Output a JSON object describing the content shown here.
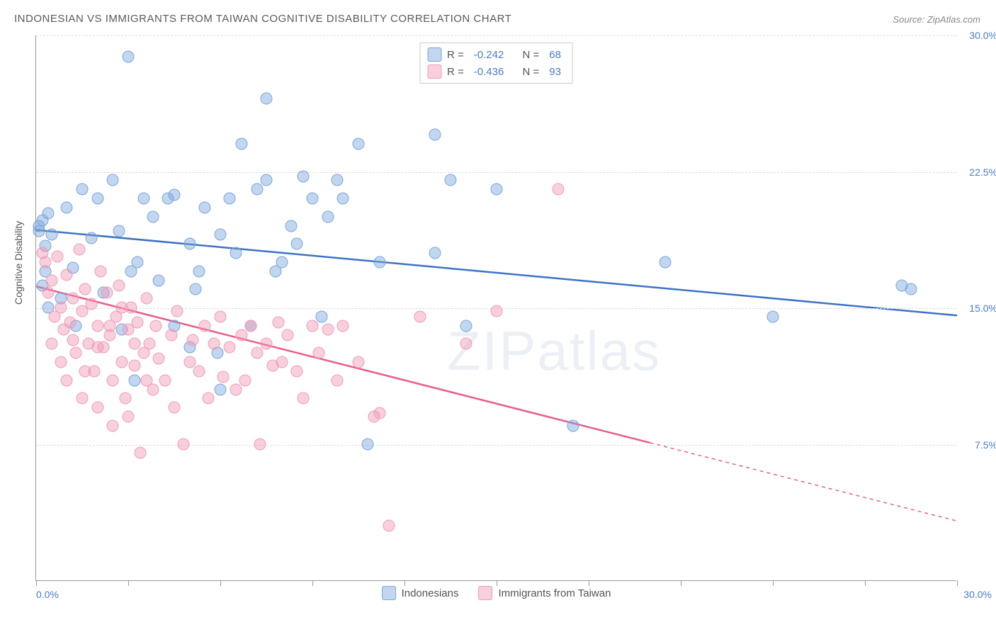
{
  "title": "INDONESIAN VS IMMIGRANTS FROM TAIWAN COGNITIVE DISABILITY CORRELATION CHART",
  "source_label": "Source:",
  "source_name": "ZipAtlas.com",
  "watermark": "ZIPatlas",
  "y_axis_title": "Cognitive Disability",
  "chart": {
    "type": "scatter",
    "xlim": [
      0,
      30
    ],
    "ylim": [
      0,
      30
    ],
    "x_ticks": [
      0,
      3,
      6,
      9,
      12,
      15,
      18,
      21,
      24,
      27,
      30
    ],
    "y_grid": [
      7.5,
      15.0,
      22.5,
      30.0
    ],
    "y_tick_labels": [
      "7.5%",
      "15.0%",
      "22.5%",
      "30.0%"
    ],
    "x_label_min": "0.0%",
    "x_label_max": "30.0%",
    "background_color": "#ffffff",
    "grid_color": "#dcdcdc",
    "axis_label_color": "#4a7bc8"
  },
  "series": [
    {
      "name": "Indonesians",
      "label": "Indonesians",
      "fill_color": "rgba(120,165,220,0.45)",
      "stroke_color": "#7aa6dd",
      "line_color": "#3d73c5",
      "marker_radius": 8.5,
      "R": "-0.242",
      "N": "68",
      "trend": {
        "x1": 0,
        "y1": 19.3,
        "x2": 30,
        "y2": 14.6,
        "solid_to_x": 30
      },
      "points": [
        [
          0.1,
          19.5
        ],
        [
          0.1,
          19.2
        ],
        [
          0.2,
          19.8
        ],
        [
          0.3,
          18.4
        ],
        [
          0.4,
          20.2
        ],
        [
          0.5,
          19.0
        ],
        [
          1.0,
          20.5
        ],
        [
          1.2,
          17.2
        ],
        [
          1.5,
          21.5
        ],
        [
          1.8,
          18.8
        ],
        [
          2.0,
          21.0
        ],
        [
          2.2,
          15.8
        ],
        [
          2.5,
          22.0
        ],
        [
          2.7,
          19.2
        ],
        [
          3.0,
          28.8
        ],
        [
          3.1,
          17.0
        ],
        [
          3.3,
          17.5
        ],
        [
          3.5,
          21.0
        ],
        [
          3.8,
          20.0
        ],
        [
          4.0,
          16.5
        ],
        [
          4.3,
          21.0
        ],
        [
          4.5,
          21.2
        ],
        [
          5.0,
          18.5
        ],
        [
          5.2,
          16.0
        ],
        [
          5.3,
          17.0
        ],
        [
          5.5,
          20.5
        ],
        [
          5.9,
          12.5
        ],
        [
          6.0,
          19.0
        ],
        [
          6.3,
          21.0
        ],
        [
          6.5,
          18.0
        ],
        [
          6.7,
          24.0
        ],
        [
          7.0,
          14.0
        ],
        [
          7.2,
          21.5
        ],
        [
          7.5,
          22.0
        ],
        [
          7.5,
          26.5
        ],
        [
          7.8,
          17.0
        ],
        [
          8.0,
          17.5
        ],
        [
          8.3,
          19.5
        ],
        [
          8.5,
          18.5
        ],
        [
          8.7,
          22.2
        ],
        [
          9.0,
          21.0
        ],
        [
          9.3,
          14.5
        ],
        [
          9.5,
          20.0
        ],
        [
          9.8,
          22.0
        ],
        [
          10.0,
          21.0
        ],
        [
          10.5,
          24.0
        ],
        [
          10.8,
          7.5
        ],
        [
          11.2,
          17.5
        ],
        [
          13.0,
          24.5
        ],
        [
          13.0,
          18.0
        ],
        [
          13.5,
          22.0
        ],
        [
          14.0,
          14.0
        ],
        [
          15.0,
          21.5
        ],
        [
          17.5,
          8.5
        ],
        [
          20.5,
          17.5
        ],
        [
          24.0,
          14.5
        ],
        [
          28.2,
          16.2
        ],
        [
          28.5,
          16.0
        ],
        [
          6.0,
          10.5
        ],
        [
          4.5,
          14.0
        ],
        [
          2.8,
          13.8
        ],
        [
          3.2,
          11.0
        ],
        [
          5.0,
          12.8
        ],
        [
          0.8,
          15.5
        ],
        [
          1.3,
          14.0
        ],
        [
          0.3,
          17.0
        ],
        [
          0.2,
          16.2
        ],
        [
          0.4,
          15.0
        ]
      ]
    },
    {
      "name": "Immigrants from Taiwan",
      "label": "Immigrants from Taiwan",
      "fill_color": "rgba(240,150,180,0.45)",
      "stroke_color": "#f19bb8",
      "line_color": "#e85d8a",
      "marker_radius": 8.5,
      "R": "-0.436",
      "N": "93",
      "trend": {
        "x1": 0,
        "y1": 16.2,
        "x2": 30,
        "y2": 3.3,
        "solid_to_x": 20
      },
      "points": [
        [
          0.2,
          18.0
        ],
        [
          0.3,
          17.5
        ],
        [
          0.4,
          15.8
        ],
        [
          0.5,
          16.5
        ],
        [
          0.6,
          14.5
        ],
        [
          0.7,
          17.8
        ],
        [
          0.8,
          15.0
        ],
        [
          0.9,
          13.8
        ],
        [
          1.0,
          16.8
        ],
        [
          1.1,
          14.2
        ],
        [
          1.2,
          15.5
        ],
        [
          1.3,
          12.5
        ],
        [
          1.4,
          18.2
        ],
        [
          1.5,
          14.8
        ],
        [
          1.6,
          16.0
        ],
        [
          1.7,
          13.0
        ],
        [
          1.8,
          15.2
        ],
        [
          1.9,
          11.5
        ],
        [
          2.0,
          14.0
        ],
        [
          2.1,
          17.0
        ],
        [
          2.2,
          12.8
        ],
        [
          2.3,
          15.8
        ],
        [
          2.4,
          13.5
        ],
        [
          2.5,
          11.0
        ],
        [
          2.6,
          14.5
        ],
        [
          2.7,
          16.2
        ],
        [
          2.8,
          12.0
        ],
        [
          2.9,
          10.0
        ],
        [
          3.0,
          13.8
        ],
        [
          3.1,
          15.0
        ],
        [
          3.2,
          11.8
        ],
        [
          3.3,
          14.2
        ],
        [
          3.4,
          7.0
        ],
        [
          3.5,
          12.5
        ],
        [
          3.6,
          15.5
        ],
        [
          3.7,
          13.0
        ],
        [
          3.8,
          10.5
        ],
        [
          3.9,
          14.0
        ],
        [
          4.0,
          12.2
        ],
        [
          4.2,
          11.0
        ],
        [
          4.4,
          13.5
        ],
        [
          4.5,
          9.5
        ],
        [
          4.6,
          14.8
        ],
        [
          4.8,
          7.5
        ],
        [
          5.0,
          12.0
        ],
        [
          5.1,
          13.2
        ],
        [
          5.3,
          11.5
        ],
        [
          5.5,
          14.0
        ],
        [
          5.6,
          10.0
        ],
        [
          5.8,
          13.0
        ],
        [
          6.0,
          14.5
        ],
        [
          6.1,
          11.2
        ],
        [
          6.3,
          12.8
        ],
        [
          6.5,
          10.5
        ],
        [
          6.7,
          13.5
        ],
        [
          6.8,
          11.0
        ],
        [
          7.0,
          14.0
        ],
        [
          7.2,
          12.5
        ],
        [
          7.3,
          7.5
        ],
        [
          7.5,
          13.0
        ],
        [
          7.7,
          11.8
        ],
        [
          7.9,
          14.2
        ],
        [
          8.0,
          12.0
        ],
        [
          8.2,
          13.5
        ],
        [
          8.5,
          11.5
        ],
        [
          8.7,
          10.0
        ],
        [
          9.0,
          14.0
        ],
        [
          9.2,
          12.5
        ],
        [
          9.5,
          13.8
        ],
        [
          9.8,
          11.0
        ],
        [
          10.0,
          14.0
        ],
        [
          10.5,
          12.0
        ],
        [
          11.0,
          9.0
        ],
        [
          11.2,
          9.2
        ],
        [
          11.5,
          3.0
        ],
        [
          12.5,
          14.5
        ],
        [
          14.0,
          13.0
        ],
        [
          15.0,
          14.8
        ],
        [
          17.0,
          21.5
        ],
        [
          1.0,
          11.0
        ],
        [
          1.5,
          10.0
        ],
        [
          2.0,
          9.5
        ],
        [
          2.5,
          8.5
        ],
        [
          3.0,
          9.0
        ],
        [
          0.5,
          13.0
        ],
        [
          0.8,
          12.0
        ],
        [
          1.2,
          13.2
        ],
        [
          1.6,
          11.5
        ],
        [
          2.0,
          12.8
        ],
        [
          2.4,
          14.0
        ],
        [
          2.8,
          15.0
        ],
        [
          3.2,
          13.0
        ],
        [
          3.6,
          11.0
        ]
      ]
    }
  ],
  "legend_stats_label_R": "R =",
  "legend_stats_label_N": "N ="
}
